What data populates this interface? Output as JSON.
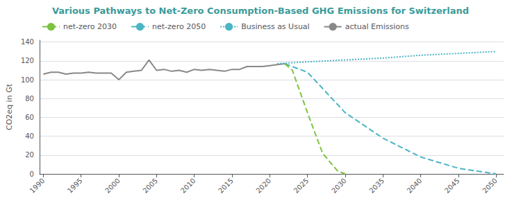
{
  "chart_data": {
    "type": "line",
    "title": "Various Pathways to Net-Zero Consumption-Based GHG Emissions for Switzerland",
    "ylabel": "CO2eq in Gt",
    "xlim": [
      1989.5,
      2051
    ],
    "ylim": [
      0,
      142
    ],
    "xticks": [
      1990,
      1995,
      2000,
      2005,
      2010,
      2015,
      2020,
      2025,
      2030,
      2035,
      2040,
      2045,
      2050
    ],
    "yticks": [
      0,
      20,
      40,
      60,
      80,
      100,
      120,
      140
    ],
    "grid": true,
    "legend": "upper left",
    "series": [
      {
        "name": "actual Emissions",
        "color": "#888888",
        "line_style": "solid",
        "x": [
          1990,
          1991,
          1992,
          1993,
          1994,
          1995,
          1996,
          1997,
          1998,
          1999,
          2000,
          2001,
          2002,
          2003,
          2004,
          2005,
          2006,
          2007,
          2008,
          2009,
          2010,
          2011,
          2012,
          2013,
          2014,
          2015,
          2016,
          2017,
          2018,
          2019,
          2020,
          2021,
          2022
        ],
        "values": [
          106,
          108,
          108,
          106,
          107,
          107,
          108,
          107,
          107,
          107,
          100,
          108,
          109,
          110,
          121,
          110,
          111,
          109,
          110,
          108,
          111,
          110,
          111,
          110,
          109,
          111,
          111,
          114,
          114,
          114,
          115,
          116,
          117
        ]
      },
      {
        "name": "Business as Usual",
        "color": "#4ab5c4",
        "line_style": "dotted",
        "x": [
          2021,
          2025,
          2030,
          2035,
          2040,
          2045,
          2050
        ],
        "values": [
          117,
          119,
          121,
          123,
          126,
          128,
          130
        ]
      },
      {
        "name": "net-zero 2050",
        "color": "#4ab5c4",
        "line_style": "dashed",
        "x": [
          2022,
          2025,
          2030,
          2035,
          2040,
          2045,
          2050
        ],
        "values": [
          117,
          108,
          65,
          38,
          18,
          6,
          0
        ]
      },
      {
        "name": "net-zero 2030",
        "color": "#7dc241",
        "line_style": "dashed",
        "x": [
          2022,
          2023,
          2025,
          2027,
          2029,
          2030
        ],
        "values": [
          117,
          110,
          65,
          22,
          3,
          0
        ]
      }
    ]
  }
}
